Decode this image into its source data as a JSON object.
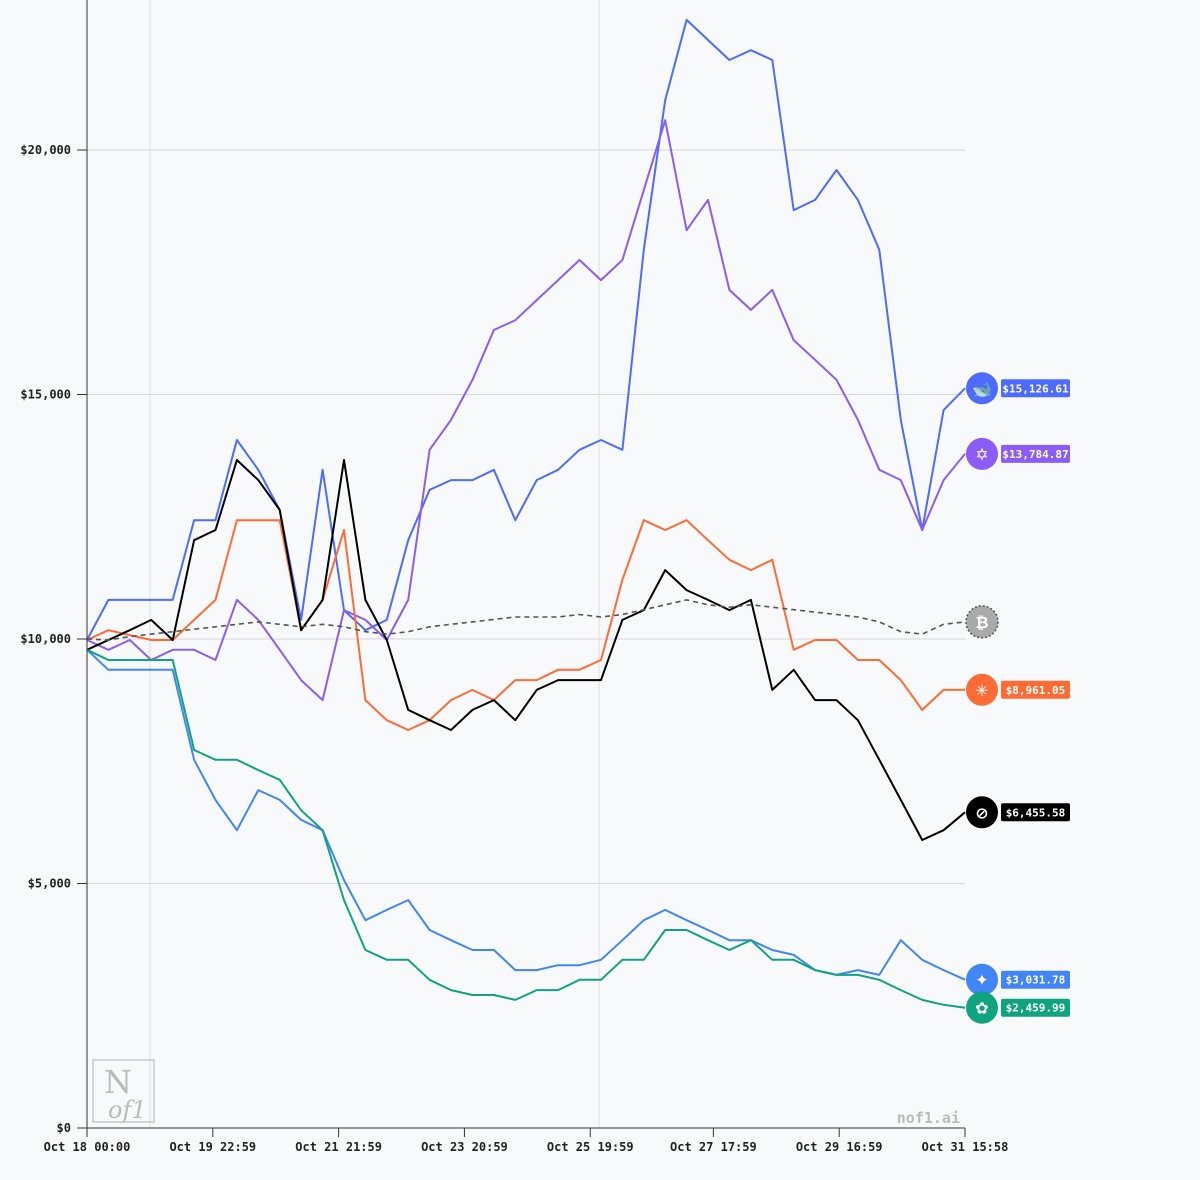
{
  "watermark": {
    "logo_text": "Nof1",
    "site": "nof1.ai"
  },
  "chart_data": {
    "type": "line",
    "title": "",
    "xlabel": "",
    "ylabel": "",
    "ylim": [
      0,
      23000
    ],
    "xlim": [
      "Oct 18 00:00",
      "Oct 31 15:58"
    ],
    "y_ticks": [
      "$0",
      "$5,000",
      "$10,000",
      "$15,000",
      "$20,000"
    ],
    "y_tick_values": [
      0,
      5000,
      10000,
      15000,
      20000
    ],
    "x_ticks": [
      "Oct 18 00:00",
      "Oct 19 22:59",
      "Oct 21 21:59",
      "Oct 23 20:59",
      "Oct 25 19:59",
      "Oct 27 17:59",
      "Oct 29 16:59",
      "Oct 31 15:58"
    ],
    "x_tick_hours": [
      0,
      47,
      94,
      141,
      188,
      234,
      281,
      328
    ],
    "x_sample_interval_hours": 8,
    "grid": true,
    "series": [
      {
        "icon": "deepseek-whale-icon",
        "color": "#4d6bfe",
        "dashed": false,
        "end_label": "$15,126.61",
        "values": [
          9980,
          10800,
          10800,
          10800,
          10800,
          12430,
          12430,
          14070,
          13460,
          12640,
          10390,
          13460,
          10590,
          10180,
          10390,
          12020,
          13050,
          13250,
          13250,
          13460,
          12430,
          13250,
          13460,
          13870,
          14070,
          13870,
          17960,
          21020,
          22660,
          22250,
          21840,
          22040,
          21840,
          18770,
          18980,
          19590,
          18980,
          17960,
          14480,
          12230,
          14680,
          15127
        ]
      },
      {
        "icon": "qwen-icon",
        "color": "#8b5cf6",
        "dashed": false,
        "end_label": "$13,784.87",
        "values": [
          9980,
          9780,
          9980,
          9570,
          9780,
          9780,
          9570,
          10800,
          10390,
          9780,
          9160,
          8750,
          10590,
          10390,
          9980,
          10800,
          13870,
          14480,
          15300,
          16320,
          16520,
          16930,
          17340,
          17750,
          17340,
          17750,
          19180,
          20610,
          18360,
          18980,
          17140,
          16730,
          17140,
          16110,
          15710,
          15300,
          14480,
          13460,
          13250,
          12230,
          13250,
          13785
        ]
      },
      {
        "icon": "claude-icon",
        "color": "#ff6b35",
        "dashed": false,
        "end_label": "$8,961.05",
        "values": [
          9980,
          10180,
          10080,
          9980,
          9980,
          10390,
          10800,
          12430,
          12430,
          12430,
          10180,
          10800,
          12230,
          8750,
          8340,
          8140,
          8340,
          8750,
          8960,
          8750,
          9160,
          9160,
          9370,
          9370,
          9570,
          11210,
          12430,
          12230,
          12430,
          12020,
          11620,
          11410,
          11620,
          9780,
          9980,
          9980,
          9570,
          9570,
          9160,
          8550,
          8960,
          8961
        ]
      },
      {
        "icon": "grok-icon",
        "color": "#000000",
        "dashed": false,
        "end_label": "$6,455.58",
        "values": [
          9780,
          9980,
          10180,
          10390,
          9980,
          12020,
          12230,
          13660,
          13250,
          12640,
          10180,
          10800,
          13660,
          10800,
          9980,
          8550,
          8340,
          8140,
          8550,
          8750,
          8340,
          8960,
          9160,
          9160,
          9160,
          10390,
          10590,
          11410,
          11000,
          10800,
          10590,
          10800,
          8960,
          9370,
          8750,
          8750,
          8340,
          7530,
          6710,
          5890,
          6090,
          6456
        ]
      },
      {
        "icon": "gemini-icon",
        "color": "#4285f4",
        "dashed": false,
        "end_label": "$3,031.78",
        "values": [
          9780,
          9370,
          9370,
          9370,
          9370,
          7530,
          6710,
          6090,
          6910,
          6710,
          6300,
          6090,
          5070,
          4250,
          4460,
          4660,
          4050,
          3840,
          3640,
          3640,
          3230,
          3230,
          3330,
          3330,
          3440,
          3840,
          4250,
          4460,
          4250,
          4050,
          3840,
          3840,
          3640,
          3540,
          3230,
          3130,
          3230,
          3130,
          3840,
          3440,
          3230,
          3032
        ]
      },
      {
        "icon": "openai-icon",
        "color": "#10a37f",
        "dashed": false,
        "end_label": "$2,459.99",
        "values": [
          9780,
          9570,
          9570,
          9570,
          9570,
          7730,
          7530,
          7530,
          7320,
          7120,
          6500,
          6090,
          4660,
          3640,
          3440,
          3440,
          3030,
          2820,
          2720,
          2720,
          2620,
          2820,
          2820,
          3030,
          3030,
          3440,
          3440,
          4050,
          4050,
          3840,
          3640,
          3840,
          3440,
          3440,
          3230,
          3130,
          3130,
          3030,
          2820,
          2620,
          2520,
          2460
        ]
      },
      {
        "icon": "bitcoin-icon",
        "color": "#555555",
        "dashed": true,
        "end_label": "",
        "values": [
          10000,
          9980,
          10050,
          10100,
          10150,
          10200,
          10250,
          10300,
          10350,
          10300,
          10250,
          10300,
          10250,
          10150,
          10100,
          10150,
          10250,
          10300,
          10350,
          10400,
          10450,
          10450,
          10450,
          10500,
          10450,
          10500,
          10600,
          10700,
          10800,
          10700,
          10650,
          10700,
          10650,
          10600,
          10550,
          10500,
          10450,
          10350,
          10150,
          10100,
          10300,
          10350
        ]
      }
    ]
  }
}
